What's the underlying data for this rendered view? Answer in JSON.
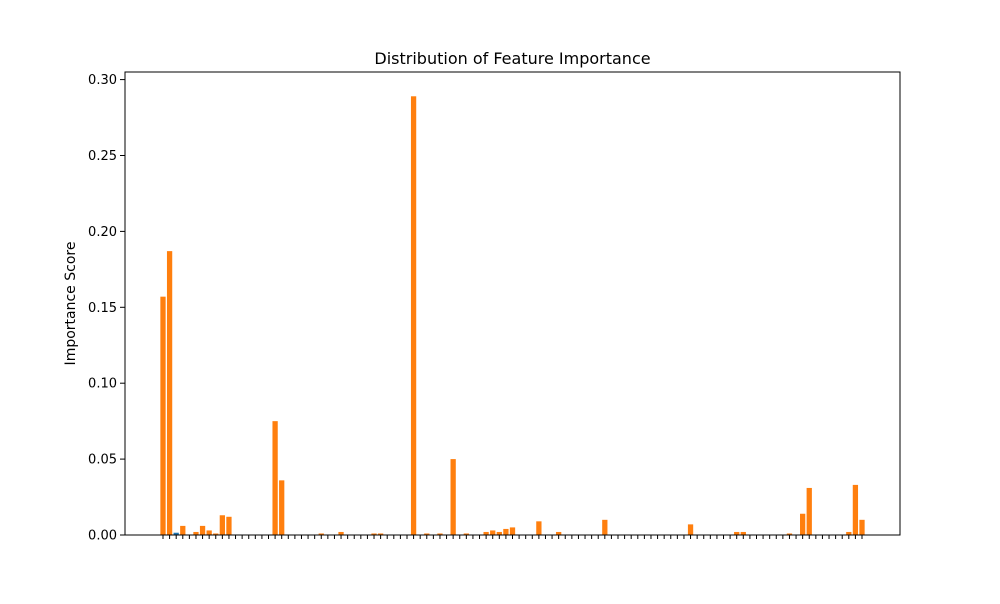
{
  "chart_data": {
    "type": "bar",
    "title": "Distribution of Feature Importance",
    "xlabel": "",
    "ylabel": "Importance Score",
    "ylim": [
      0,
      0.305
    ],
    "yticks": [
      0.0,
      0.05,
      0.1,
      0.15,
      0.2,
      0.25,
      0.3
    ],
    "ytick_labels": [
      "0.00",
      "0.05",
      "0.10",
      "0.15",
      "0.20",
      "0.25",
      "0.30"
    ],
    "grid": false,
    "colors": {
      "underlay": "#1f77b4",
      "bar": "#ff7f0e",
      "axis": "#000000"
    },
    "values": [
      0.157,
      0.187,
      0.0,
      0.006,
      0.0,
      0.002,
      0.006,
      0.003,
      0.001,
      0.013,
      0.012,
      0.0,
      0.0,
      0.0,
      0.0,
      0.0,
      0.0,
      0.075,
      0.036,
      0.0,
      0.0,
      0.0,
      0.0,
      0.0,
      0.001,
      0.0,
      0.0,
      0.002,
      0.0,
      0.0,
      0.0,
      0.0,
      0.001,
      0.001,
      0.0,
      0.0,
      0.0,
      0.0,
      0.289,
      0.0,
      0.001,
      0.0,
      0.001,
      0.0,
      0.05,
      0.0,
      0.001,
      0.0,
      0.0,
      0.002,
      0.003,
      0.002,
      0.004,
      0.005,
      0.0,
      0.0,
      0.0,
      0.009,
      0.0,
      0.0,
      0.002,
      0.0,
      0.0,
      0.0,
      0.0,
      0.0,
      0.0,
      0.01,
      0.0,
      0.0,
      0.0,
      0.0,
      0.0,
      0.0,
      0.0,
      0.0,
      0.0,
      0.0,
      0.0,
      0.0,
      0.007,
      0.0,
      0.0,
      0.0,
      0.0,
      0.0,
      0.0,
      0.002,
      0.002,
      0.0,
      0.0,
      0.0,
      0.0,
      0.0,
      0.0,
      0.001,
      0.0,
      0.014,
      0.031,
      0.0,
      0.0,
      0.0,
      0.0,
      0.0,
      0.002,
      0.033,
      0.01
    ],
    "underlay_values": [
      0.0,
      0.0,
      0.0015,
      0.0,
      0.0,
      0.0,
      0.0,
      0.0,
      0.0,
      0.0,
      0.0,
      0.0,
      0.0,
      0.0,
      0.0,
      0.0,
      0.0,
      0.0,
      0.0,
      0.0,
      0.0,
      0.0,
      0.0,
      0.0,
      0.0,
      0.0,
      0.0,
      0.0,
      0.0,
      0.0,
      0.0,
      0.0,
      0.0,
      0.0,
      0.0,
      0.0,
      0.0,
      0.0,
      0.0,
      0.0,
      0.0,
      0.0,
      0.0,
      0.0,
      0.0,
      0.0,
      0.0,
      0.0,
      0.0,
      0.0,
      0.0,
      0.0,
      0.0,
      0.0,
      0.0,
      0.0,
      0.0,
      0.0,
      0.0,
      0.0,
      0.0,
      0.0,
      0.0,
      0.0,
      0.0,
      0.0,
      0.0,
      0.0,
      0.0,
      0.0,
      0.0,
      0.0,
      0.0,
      0.0,
      0.0,
      0.0,
      0.0,
      0.0,
      0.0,
      0.0,
      0.0,
      0.0,
      0.0,
      0.0,
      0.0,
      0.0,
      0.0,
      0.0,
      0.0,
      0.0,
      0.0,
      0.0,
      0.0,
      0.0,
      0.0,
      0.0,
      0.0,
      0.0,
      0.0,
      0.0,
      0.0,
      0.0,
      0.0,
      0.0,
      0.0,
      0.0,
      0.0
    ]
  }
}
